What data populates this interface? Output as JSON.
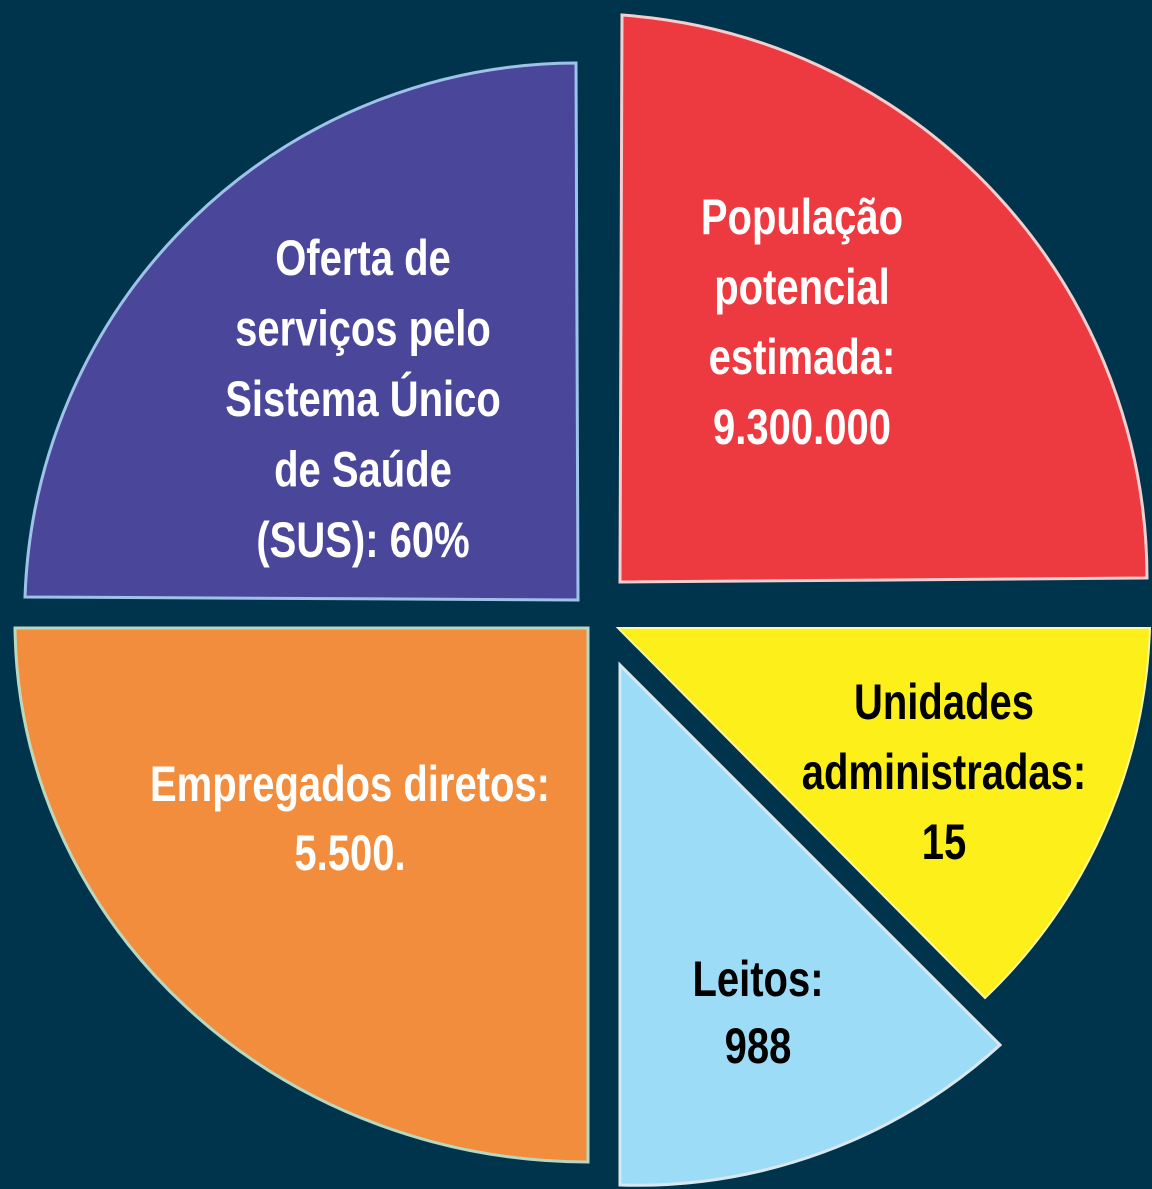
{
  "segments": [
    {
      "lines": [
        "Oferta de",
        "serviços pelo",
        "Sistema Único",
        "de Saúde",
        "(SUS): 60%"
      ]
    },
    {
      "lines": [
        "População",
        "potencial",
        "estimada:",
        "9.300.000"
      ]
    },
    {
      "lines": [
        "Empregados diretos:",
        "5.500."
      ]
    },
    {
      "lines": [
        "Unidades",
        "administradas:",
        "15"
      ]
    },
    {
      "lines": [
        "Leitos:",
        "988"
      ]
    }
  ]
}
